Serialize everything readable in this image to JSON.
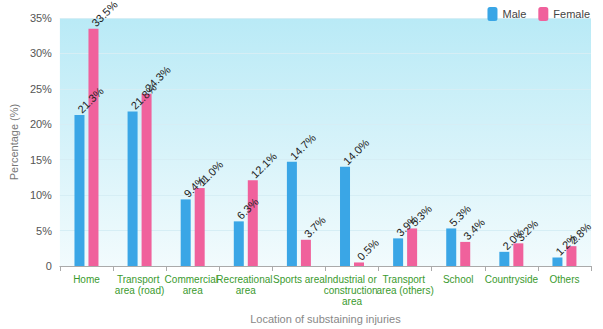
{
  "chart_data": {
    "type": "bar",
    "x_label": "Location of substaining injuries",
    "y_label": "Percentage (%)",
    "categories": [
      "Home",
      "Transport area (road)",
      "Commercial area",
      "Recreational area",
      "Sports area",
      "Industrial or construction area",
      "Transport area (others)",
      "School",
      "Countryside",
      "Others"
    ],
    "series": [
      {
        "name": "Male",
        "color": "#3aa6e6",
        "values": [
          21.3,
          21.8,
          9.4,
          6.3,
          14.7,
          14.0,
          3.9,
          5.3,
          2.0,
          1.2
        ],
        "value_labels": [
          "21.3%",
          "21.8%",
          "9.4%",
          "6.3%",
          "14.7%",
          "14.0%",
          "3.9%",
          "5.3%",
          "2.0%",
          "1.2%"
        ]
      },
      {
        "name": "Female",
        "color": "#f0619c",
        "values": [
          33.5,
          24.3,
          11.0,
          12.1,
          3.7,
          0.5,
          5.3,
          3.4,
          3.2,
          2.8
        ],
        "value_labels": [
          "33.5%",
          "24.3%",
          "11.0%",
          "12.1%",
          "3.7%",
          "0.5%",
          "5.3%",
          "3.4%",
          "3.2%",
          "2.8%"
        ]
      }
    ],
    "ylim": [
      0,
      35
    ],
    "yticks": [
      0,
      {
        "value": 5,
        "label": "5%"
      },
      {
        "value": 10,
        "label": "10%"
      },
      {
        "value": 15,
        "label": "15%"
      },
      {
        "value": 20,
        "label": "20%"
      },
      {
        "value": 25,
        "label": "25%"
      },
      {
        "value": 30,
        "label": "30%"
      },
      {
        "value": 35,
        "label": "35%"
      }
    ],
    "grid": true,
    "legend": "upper right",
    "data_labels": true
  }
}
